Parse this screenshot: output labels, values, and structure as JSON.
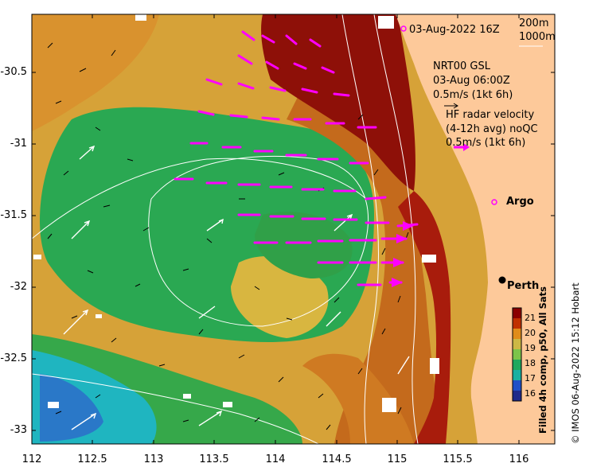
{
  "header": {
    "date": "03-Aug-2022 16Z",
    "contour1": "200m",
    "contour2": "1000m"
  },
  "legend": {
    "model_name": "NRT00 GSL",
    "model_time": "03-Aug 06:00Z",
    "model_scale": "0.5m/s (1kt 6h)",
    "radar_line1": "HF radar velocity",
    "radar_line2": "(4-12h avg) noQC",
    "radar_scale": "0.5m/s (1kt 6h)"
  },
  "places": {
    "argo": "Argo",
    "perth": "Perth"
  },
  "axes": {
    "lat_ticks": [
      "-30.5",
      "-31",
      "-31.5",
      "-32",
      "-32.5",
      "-33"
    ],
    "lon_ticks": [
      "112",
      "112.5",
      "113",
      "113.5",
      "114",
      "114.5",
      "115",
      "115.5",
      "116"
    ]
  },
  "colorbar": {
    "title": "Filled 4h comp, p50, All Sats",
    "ticks": [
      "21",
      "20",
      "19",
      "18",
      "17",
      "16"
    ],
    "colors": [
      "#8b0000",
      "#c03000",
      "#e08c1a",
      "#ccb845",
      "#7cc44a",
      "#1fa85e",
      "#19b0a2",
      "#2050c8",
      "#202a8a"
    ]
  },
  "credit": "© IMOS 06-Aug-2022 15:12 Hobart",
  "colors": {
    "land": "#fdc99a",
    "arrow_magenta": "#ff00ff",
    "contour": "#ffffff"
  }
}
